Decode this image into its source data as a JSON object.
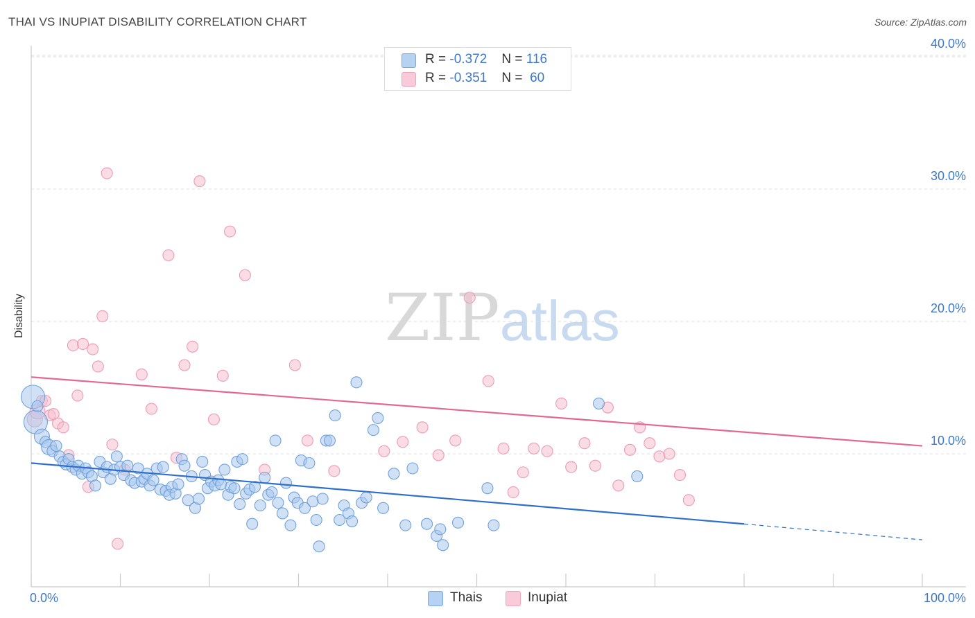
{
  "header": {
    "title": "THAI VS INUPIAT DISABILITY CORRELATION CHART",
    "source": "Source: ZipAtlas.com"
  },
  "watermark": {
    "zip": "ZIP",
    "atlas": "atlas"
  },
  "legend": {
    "rows": [
      {
        "r_label": "R =",
        "r_value": "-0.372",
        "n_label": "N =",
        "n_value": "116"
      },
      {
        "r_label": "R =",
        "r_value": "-0.351",
        "n_label": "N =",
        "n_value": "60"
      }
    ]
  },
  "colors": {
    "thai_fill": "#a9c8ee",
    "thai_stroke": "#6fa1dc",
    "thai_line": "#2e6fcc",
    "inupiat_fill": "#f6bfd0",
    "inupiat_stroke": "#ee9ab5",
    "inupiat_line": "#e2688f",
    "tick_label": "#3d78cc",
    "grid": "#dddddd"
  },
  "chart_data": {
    "type": "scatter",
    "title": "THAI VS INUPIAT DISABILITY CORRELATION CHART",
    "xlabel": "",
    "ylabel": "Disability",
    "xlim": [
      0,
      100
    ],
    "ylim": [
      0,
      42
    ],
    "x_tick_labels": [
      "0.0%",
      "100.0%"
    ],
    "y_ticks": [
      10,
      20,
      30,
      40
    ],
    "y_tick_labels": [
      "10.0%",
      "20.0%",
      "30.0%",
      "40.0%"
    ],
    "grid": true,
    "legend_position": "top-center",
    "series": [
      {
        "name": "Thais",
        "r": -0.372,
        "n": 116,
        "trend": {
          "x0": 0,
          "y0": 9.3,
          "x1": 80,
          "y1": 4.7,
          "dash_to_x": 100,
          "dash_to_y": 3.5
        },
        "points": [
          [
            0.2,
            14.3,
            "l"
          ],
          [
            0.5,
            12.4,
            "l"
          ],
          [
            0.7,
            13.6
          ],
          [
            1.2,
            11.3,
            "m"
          ],
          [
            1.6,
            10.9
          ],
          [
            2.0,
            10.5,
            "m"
          ],
          [
            2.4,
            10.2
          ],
          [
            2.8,
            10.6
          ],
          [
            3.2,
            9.8
          ],
          [
            3.6,
            9.4
          ],
          [
            3.9,
            9.2
          ],
          [
            4.2,
            9.6
          ],
          [
            4.6,
            9.0
          ],
          [
            5.0,
            8.8
          ],
          [
            5.3,
            9.1
          ],
          [
            5.7,
            8.5
          ],
          [
            6.1,
            8.9
          ],
          [
            6.4,
            8.6
          ],
          [
            6.8,
            8.3
          ],
          [
            7.2,
            7.6
          ],
          [
            7.7,
            9.4
          ],
          [
            8.1,
            8.6
          ],
          [
            8.5,
            9.0
          ],
          [
            8.9,
            8.1
          ],
          [
            9.3,
            8.8
          ],
          [
            9.6,
            9.8
          ],
          [
            10.0,
            9.0
          ],
          [
            10.4,
            8.4
          ],
          [
            10.8,
            9.1
          ],
          [
            11.2,
            8.0
          ],
          [
            11.6,
            7.8
          ],
          [
            12.0,
            8.9
          ],
          [
            12.4,
            7.9
          ],
          [
            12.7,
            8.1
          ],
          [
            13.0,
            8.5
          ],
          [
            13.3,
            7.6
          ],
          [
            13.7,
            8.0
          ],
          [
            14.1,
            8.9
          ],
          [
            14.5,
            7.3
          ],
          [
            14.8,
            9.0
          ],
          [
            15.1,
            7.2
          ],
          [
            15.5,
            6.9
          ],
          [
            15.8,
            7.5
          ],
          [
            16.2,
            7.0
          ],
          [
            16.5,
            7.7
          ],
          [
            16.9,
            9.6
          ],
          [
            17.2,
            9.1
          ],
          [
            17.6,
            6.5
          ],
          [
            18.0,
            8.3
          ],
          [
            18.4,
            5.9
          ],
          [
            18.8,
            6.6
          ],
          [
            19.2,
            9.4
          ],
          [
            19.5,
            8.4
          ],
          [
            19.8,
            7.4
          ],
          [
            20.2,
            7.9
          ],
          [
            20.6,
            7.6
          ],
          [
            21.0,
            8.0
          ],
          [
            21.3,
            7.7
          ],
          [
            21.7,
            8.8
          ],
          [
            22.1,
            6.9
          ],
          [
            22.4,
            7.5
          ],
          [
            22.8,
            7.4
          ],
          [
            23.1,
            9.4
          ],
          [
            23.4,
            6.2
          ],
          [
            23.7,
            9.6
          ],
          [
            24.1,
            7.0
          ],
          [
            24.5,
            7.3
          ],
          [
            24.8,
            4.7
          ],
          [
            25.1,
            7.5
          ],
          [
            25.7,
            6.1
          ],
          [
            26.2,
            8.2
          ],
          [
            26.6,
            6.9
          ],
          [
            27.0,
            7.1
          ],
          [
            27.4,
            11.0
          ],
          [
            27.7,
            6.3
          ],
          [
            28.2,
            5.5
          ],
          [
            28.6,
            7.8
          ],
          [
            29.1,
            4.6
          ],
          [
            29.5,
            6.7
          ],
          [
            29.9,
            6.3
          ],
          [
            30.3,
            9.5
          ],
          [
            30.7,
            5.9
          ],
          [
            31.2,
            9.3
          ],
          [
            31.6,
            6.4
          ],
          [
            32.0,
            5.0
          ],
          [
            32.3,
            3.0
          ],
          [
            32.7,
            6.6
          ],
          [
            33.1,
            11.0
          ],
          [
            33.5,
            11.0
          ],
          [
            34.1,
            12.9
          ],
          [
            34.6,
            5.0
          ],
          [
            35.1,
            6.1
          ],
          [
            35.6,
            5.5
          ],
          [
            36.0,
            4.9
          ],
          [
            36.5,
            15.4
          ],
          [
            37.1,
            6.3
          ],
          [
            37.6,
            6.7
          ],
          [
            38.4,
            11.8
          ],
          [
            38.9,
            12.7
          ],
          [
            39.5,
            5.9
          ],
          [
            40.7,
            8.5
          ],
          [
            42.0,
            4.6
          ],
          [
            42.8,
            8.9
          ],
          [
            44.4,
            4.7
          ],
          [
            45.5,
            3.8
          ],
          [
            46.2,
            3.1
          ],
          [
            45.9,
            4.3
          ],
          [
            47.9,
            4.8
          ],
          [
            51.2,
            7.4
          ],
          [
            51.9,
            4.6
          ],
          [
            63.7,
            13.8
          ],
          [
            68.0,
            8.3
          ]
        ]
      },
      {
        "name": "Inupiat",
        "r": -0.351,
        "n": 60,
        "trend": {
          "x0": 0,
          "y0": 15.8,
          "x1": 100,
          "y1": 10.6
        },
        "points": [
          [
            0.4,
            12.6,
            "m"
          ],
          [
            0.7,
            13.2,
            "m"
          ],
          [
            1.2,
            14.0
          ],
          [
            1.6,
            14.0
          ],
          [
            2.1,
            12.9
          ],
          [
            2.5,
            13.0
          ],
          [
            3.0,
            12.3
          ],
          [
            3.6,
            12.0
          ],
          [
            4.2,
            9.9
          ],
          [
            4.7,
            18.2
          ],
          [
            5.2,
            14.4
          ],
          [
            5.8,
            18.3
          ],
          [
            6.4,
            7.5
          ],
          [
            6.9,
            17.9
          ],
          [
            7.5,
            16.6
          ],
          [
            8.0,
            20.4
          ],
          [
            8.5,
            31.2
          ],
          [
            9.1,
            10.7
          ],
          [
            9.7,
            3.2
          ],
          [
            10.5,
            8.8
          ],
          [
            12.4,
            16.0
          ],
          [
            13.5,
            13.4
          ],
          [
            15.4,
            25.0
          ],
          [
            16.3,
            9.7
          ],
          [
            17.2,
            16.7
          ],
          [
            18.1,
            18.1
          ],
          [
            18.9,
            30.6
          ],
          [
            20.5,
            12.6
          ],
          [
            21.5,
            15.9
          ],
          [
            22.3,
            26.8
          ],
          [
            24.0,
            23.5
          ],
          [
            26.2,
            8.8
          ],
          [
            29.6,
            16.7
          ],
          [
            31.0,
            11.0
          ],
          [
            34.0,
            8.7
          ],
          [
            39.6,
            10.2
          ],
          [
            41.7,
            10.9
          ],
          [
            43.9,
            12.0
          ],
          [
            45.7,
            9.9
          ],
          [
            47.6,
            11.0
          ],
          [
            49.2,
            21.8
          ],
          [
            51.3,
            15.5
          ],
          [
            53.0,
            10.4
          ],
          [
            54.1,
            7.1
          ],
          [
            55.2,
            8.6
          ],
          [
            56.4,
            10.4
          ],
          [
            57.9,
            10.2
          ],
          [
            59.5,
            13.8
          ],
          [
            60.6,
            9.0
          ],
          [
            62.1,
            10.8
          ],
          [
            63.3,
            9.1
          ],
          [
            64.7,
            13.5
          ],
          [
            65.9,
            7.6
          ],
          [
            67.2,
            10.3
          ],
          [
            68.3,
            12.0
          ],
          [
            69.4,
            10.8
          ],
          [
            70.5,
            9.8
          ],
          [
            71.6,
            10.0
          ],
          [
            72.8,
            8.4
          ],
          [
            73.8,
            6.5
          ]
        ]
      }
    ]
  },
  "bottom_legend": {
    "items": [
      "Thais",
      "Inupiat"
    ]
  }
}
